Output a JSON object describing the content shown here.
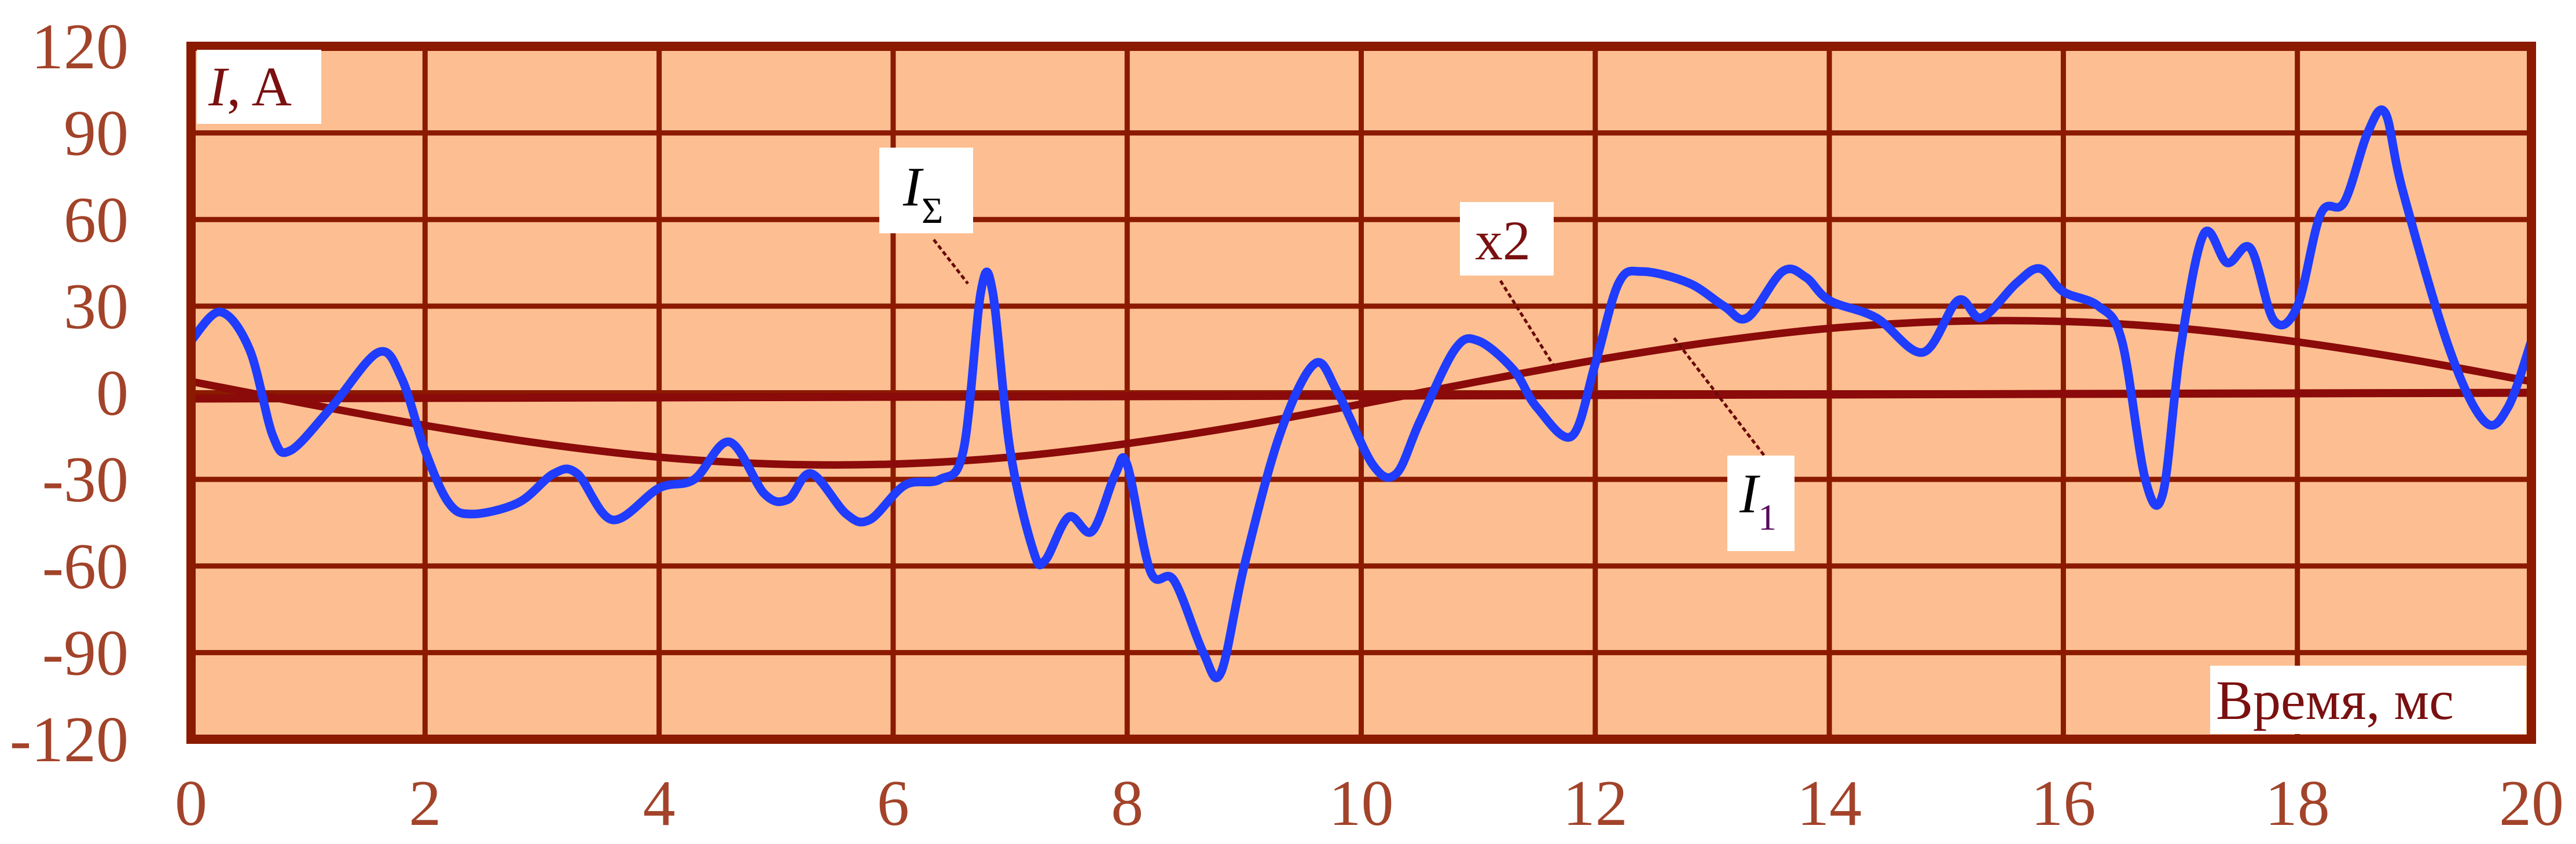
{
  "chart_data": {
    "type": "line",
    "xlabel": "Время, мс",
    "ylabel_symbol": "I",
    "ylabel_unit": ", A",
    "xlim": [
      0,
      20
    ],
    "ylim": [
      -120,
      120
    ],
    "x_ticks": [
      0,
      2,
      4,
      6,
      8,
      10,
      12,
      14,
      16,
      18,
      20
    ],
    "y_ticks": [
      120,
      90,
      60,
      30,
      0,
      -30,
      -60,
      -90,
      -120
    ],
    "grid": true,
    "colors": {
      "background": "#fdbf91",
      "grid": "#8b1a00",
      "sum": "#1f3cff",
      "fundamental": "#8b0a0a",
      "ticks": "#a2432a"
    },
    "annotations": [
      {
        "symbol": "I",
        "subscript": "Σ",
        "target": "sum"
      },
      {
        "text": "x2",
        "target": "fundamental"
      },
      {
        "symbol": "I",
        "subscript": "1",
        "target": "fundamental"
      }
    ],
    "series": [
      {
        "id": "sum",
        "label_symbol": "I",
        "label_subscript": "Σ",
        "x": [
          0,
          0.25,
          0.5,
          0.7,
          0.85,
          1.2,
          1.6,
          1.8,
          2.0,
          2.2,
          2.4,
          2.8,
          3.1,
          3.3,
          3.6,
          4.0,
          4.3,
          4.6,
          4.9,
          5.1,
          5.3,
          5.6,
          5.8,
          6.1,
          6.4,
          6.6,
          6.75,
          6.85,
          7.0,
          7.2,
          7.3,
          7.5,
          7.7,
          7.9,
          8.0,
          8.2,
          8.4,
          8.65,
          8.8,
          9.0,
          9.3,
          9.6,
          9.8,
          10.1,
          10.3,
          10.5,
          10.8,
          11.0,
          11.3,
          11.5,
          11.8,
          12.0,
          12.2,
          12.4,
          12.8,
          13.1,
          13.3,
          13.6,
          13.8,
          14.0,
          14.4,
          14.8,
          15.1,
          15.3,
          15.6,
          15.8,
          16.0,
          16.3,
          16.5,
          16.7,
          16.85,
          17.0,
          17.2,
          17.4,
          17.6,
          17.8,
          18.0,
          18.2,
          18.4,
          18.6,
          18.75,
          18.9,
          19.3,
          19.6,
          19.8,
          20.0
        ],
        "y": [
          18,
          28,
          15,
          -15,
          -20,
          -5,
          14,
          5,
          -20,
          -38,
          -42,
          -38,
          -28,
          -28,
          -44,
          -33,
          -30,
          -17,
          -35,
          -37,
          -28,
          -42,
          -44,
          -32,
          -30,
          -20,
          35,
          35,
          -20,
          -55,
          -58,
          -43,
          -48,
          -28,
          -25,
          -62,
          -65,
          -90,
          -97,
          -60,
          -15,
          10,
          0,
          -25,
          -28,
          -10,
          15,
          18,
          8,
          -5,
          -15,
          10,
          38,
          42,
          38,
          30,
          26,
          42,
          40,
          32,
          26,
          14,
          32,
          26,
          38,
          43,
          35,
          30,
          18,
          -30,
          -35,
          15,
          55,
          45,
          50,
          25,
          30,
          62,
          66,
          90,
          97,
          70,
          15,
          -10,
          -5,
          18
        ]
      },
      {
        "id": "fundamental",
        "label_symbol": "I",
        "label_subscript": "1",
        "scale_note": "x2",
        "x": [
          0,
          1,
          2,
          3,
          4,
          5,
          6,
          7,
          8,
          9,
          10,
          11,
          12,
          13,
          14,
          15,
          16,
          17,
          18,
          19,
          20
        ],
        "y": [
          3.9,
          -3.9,
          -11.3,
          -17.6,
          -22.3,
          -24.7,
          -24.7,
          -22.3,
          -17.6,
          -11.3,
          -3.9,
          3.9,
          11.3,
          17.6,
          22.3,
          24.7,
          24.7,
          22.3,
          17.6,
          11.3,
          3.9
        ]
      },
      {
        "id": "zero-line",
        "x": [
          0,
          20
        ],
        "y": [
          -2,
          0
        ]
      }
    ]
  }
}
